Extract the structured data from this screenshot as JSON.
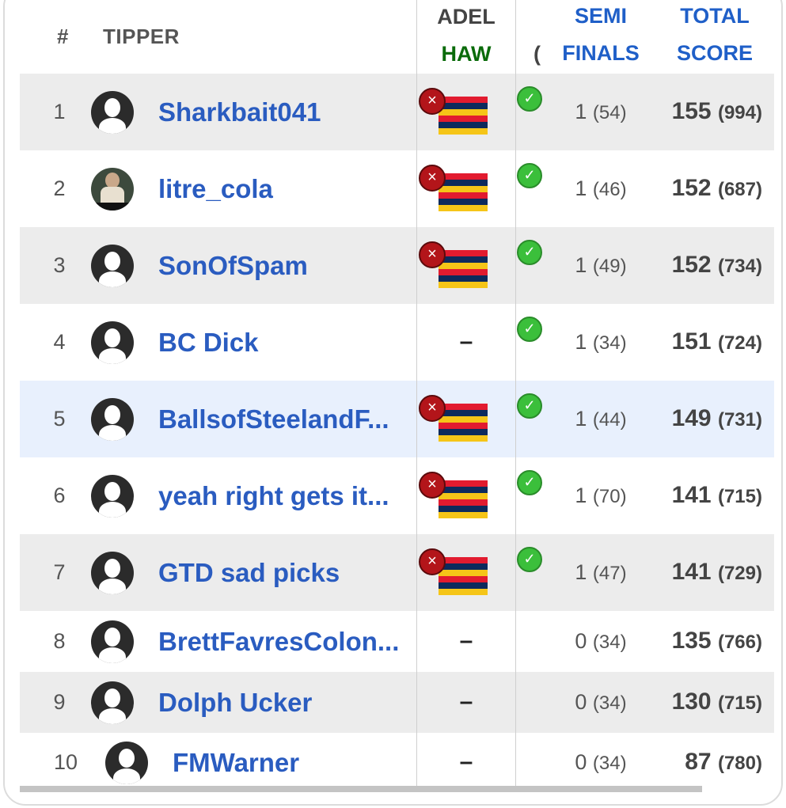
{
  "header": {
    "rank": "#",
    "tipper": "TIPPER",
    "home_team": "ADEL",
    "away_team": "HAW",
    "truncated": "(",
    "semi": "SEMI FINALS",
    "total": "TOTAL SCORE"
  },
  "colors": {
    "link_blue": "#2a5cc0",
    "away_green": "#0a6b0a",
    "wrong_red": "#b3151a",
    "correct_green": "#3bbf3b"
  },
  "flag_stripes": [
    "#e21b2f",
    "#0d2a5c",
    "#f5c518",
    "#e21b2f",
    "#0d2a5c",
    "#f5c518"
  ],
  "rows": [
    {
      "rank": "1",
      "name": "Sharkbait041",
      "avatar": "default",
      "tip": "ADEL",
      "tip_result": "wrong",
      "check": true,
      "semi": "1",
      "semi_sub": "(54)",
      "total": "155",
      "total_sub": "(994)"
    },
    {
      "rank": "2",
      "name": "litre_cola",
      "avatar": "photo",
      "tip": "ADEL",
      "tip_result": "wrong",
      "check": true,
      "semi": "1",
      "semi_sub": "(46)",
      "total": "152",
      "total_sub": "(687)"
    },
    {
      "rank": "3",
      "name": "SonOfSpam",
      "avatar": "default",
      "tip": "ADEL",
      "tip_result": "wrong",
      "check": true,
      "semi": "1",
      "semi_sub": "(49)",
      "total": "152",
      "total_sub": "(734)"
    },
    {
      "rank": "4",
      "name": "BC Dick",
      "avatar": "default",
      "tip": "–",
      "tip_result": "none",
      "check": true,
      "semi": "1",
      "semi_sub": "(34)",
      "total": "151",
      "total_sub": "(724)"
    },
    {
      "rank": "5",
      "name": "BallsofSteelandF...",
      "avatar": "default",
      "tip": "ADEL",
      "tip_result": "wrong",
      "check": true,
      "semi": "1",
      "semi_sub": "(44)",
      "total": "149",
      "total_sub": "(731)"
    },
    {
      "rank": "6",
      "name": "yeah right gets it...",
      "avatar": "default",
      "tip": "ADEL",
      "tip_result": "wrong",
      "check": true,
      "semi": "1",
      "semi_sub": "(70)",
      "total": "141",
      "total_sub": "(715)"
    },
    {
      "rank": "7",
      "name": "GTD sad picks",
      "avatar": "default",
      "tip": "ADEL",
      "tip_result": "wrong",
      "check": true,
      "semi": "1",
      "semi_sub": "(47)",
      "total": "141",
      "total_sub": "(729)"
    },
    {
      "rank": "8",
      "name": "BrettFavresColon...",
      "avatar": "default",
      "tip": "–",
      "tip_result": "none",
      "check": false,
      "semi": "0",
      "semi_sub": "(34)",
      "total": "135",
      "total_sub": "(766)"
    },
    {
      "rank": "9",
      "name": "Dolph Ucker",
      "avatar": "default",
      "tip": "–",
      "tip_result": "none",
      "check": false,
      "semi": "0",
      "semi_sub": "(34)",
      "total": "130",
      "total_sub": "(715)"
    },
    {
      "rank": "10",
      "name": "FMWarner",
      "avatar": "default",
      "tip": "–",
      "tip_result": "none",
      "check": false,
      "semi": "0",
      "semi_sub": "(34)",
      "total": "87",
      "total_sub": "(780)"
    }
  ]
}
